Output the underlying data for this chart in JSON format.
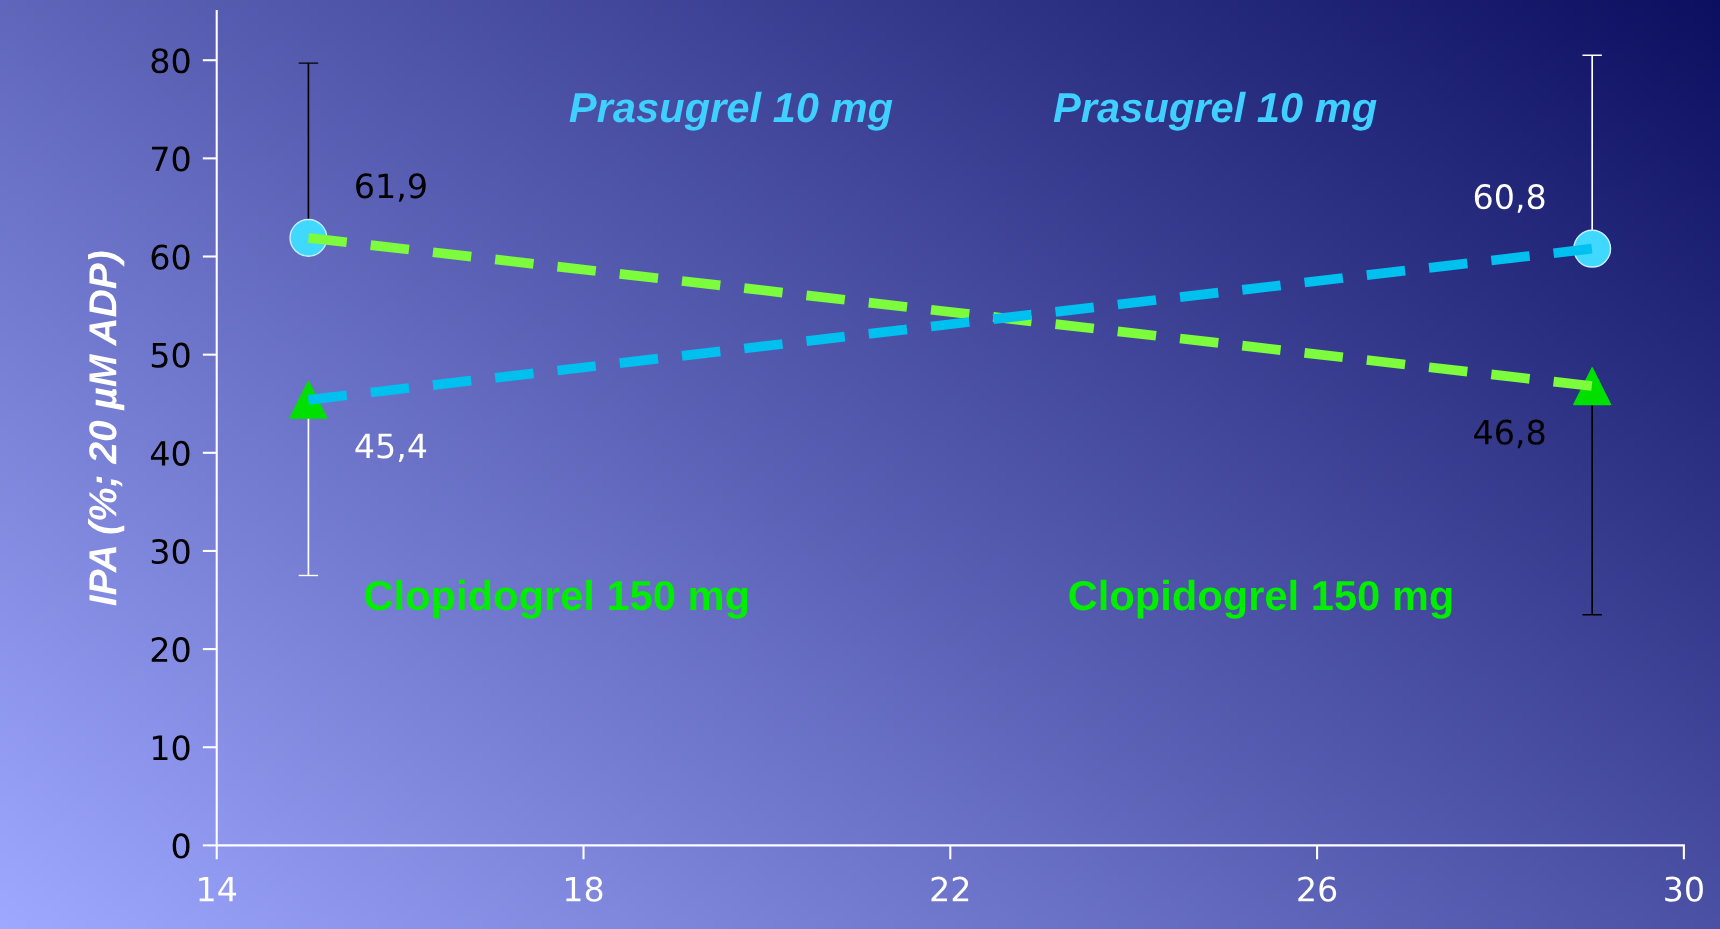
{
  "chart_data": {
    "type": "scatter",
    "ylabel": "IPA (%; 20 µM ADP)",
    "x": [
      15,
      29
    ],
    "series": [
      {
        "type": "line",
        "color": "#7cfc3c",
        "values": [
          61.9,
          46.8
        ],
        "line_style": "dashed",
        "marker": "none"
      },
      {
        "type": "line",
        "color": "#00c0f0",
        "values": [
          45.4,
          60.8
        ],
        "line_style": "dashed",
        "marker": "none"
      },
      {
        "color": "#40d8ff",
        "marker": "circle",
        "values": [
          61.9,
          60.8
        ],
        "errors": [
          [
            61.9,
            79.7
          ],
          [
            60.8,
            80.5
          ]
        ],
        "value_labels": [
          "61,9",
          "60,8"
        ]
      },
      {
        "color": "#00e000",
        "marker": "triangle",
        "values": [
          45.4,
          46.8
        ],
        "errors": [
          [
            27.5,
            45.4
          ],
          [
            23.5,
            46.8
          ]
        ],
        "value_labels": [
          "45,4",
          "46,8"
        ]
      }
    ],
    "annotations": [
      "Prasugrel 10 mg",
      "Prasugrel 10 mg",
      "Clopidogrel 150 mg",
      "Clopidogrel 150 mg"
    ],
    "xlim": [
      14,
      30
    ],
    "xticks": [
      14,
      18,
      22,
      26,
      30
    ],
    "ylim": [
      0,
      85
    ],
    "yticks": [
      0,
      10,
      20,
      30,
      40,
      50,
      60,
      70,
      80
    ],
    "grid": false,
    "legend": false
  }
}
